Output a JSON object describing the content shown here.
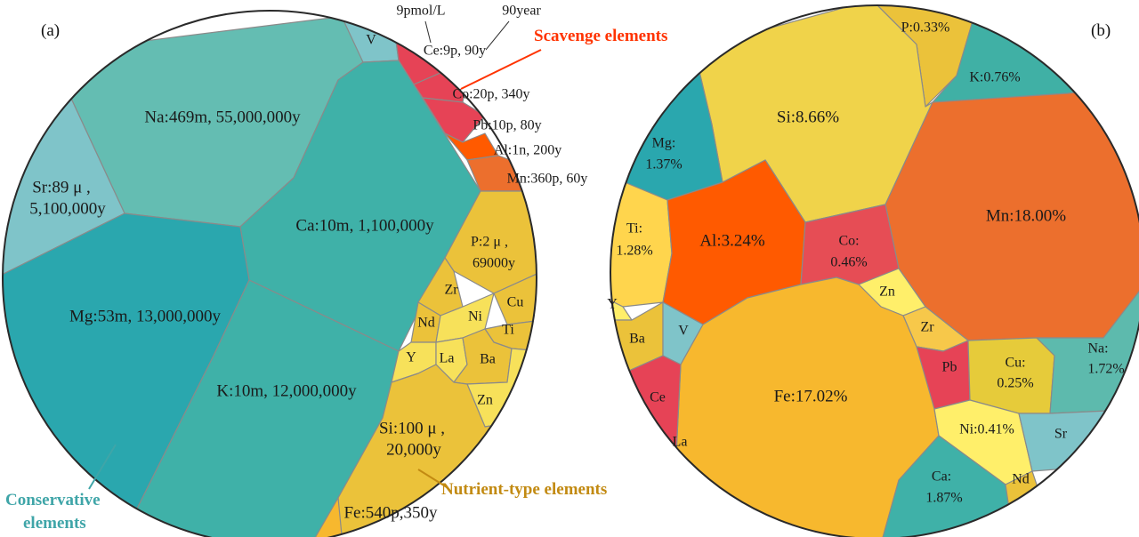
{
  "colors": {
    "conservative_dark": "#2aa7ae",
    "conservative_mid": "#3fb1a8",
    "conservative_light": "#64bdb2",
    "conservative_pale": "#7fc4c9",
    "scavenge_red": "#e64356",
    "scavenge_orange": "#ff5a00",
    "nutrient_gold": "#ebc23a",
    "nutrient_yellow": "#f7e15a",
    "fe_orange": "#f7b82e",
    "mn_orange": "#ec6f2d",
    "scavenge_label": "#ff3300",
    "nutrient_label": "#c28a12",
    "conservative_label": "#3fa5a8"
  },
  "panel_a": {
    "label": "(a)",
    "annotations": {
      "concentration": "9pmol/L",
      "residence": "90year"
    },
    "categories": {
      "scavenge": "Scavenge elements",
      "nutrient": "Nutrient-type elements",
      "conservative_line1": "Conservative",
      "conservative_line2": "elements"
    },
    "cells": {
      "na": "Na:469m, 55,000,000y",
      "v": "V",
      "sr_line1": "Sr:89 μ ,",
      "sr_line2": "5,100,000y",
      "ca": "Ca:10m, 1,100,000y",
      "mg": "Mg:53m, 13,000,000y",
      "k": "K:10m, 12,000,000y",
      "ce": "Ce:9p, 90y",
      "co": "Co:20p, 340y",
      "pb": "Pb:10p, 80y",
      "al": "Al:1n, 200y",
      "mn": "Mn:360p, 60y",
      "p_line1": "P:2 μ ,",
      "p_line2": "69000y",
      "zr": "Zr",
      "cu": "Cu",
      "nd": "Nd",
      "ni": "Ni",
      "ti": "Ti",
      "y": "Y",
      "la": "La",
      "ba": "Ba",
      "zn": "Zn",
      "si_line1": "Si:100 μ ,",
      "si_line2": "20,000y",
      "fe": "Fe:540p,350y"
    }
  },
  "panel_b": {
    "label": "(b)",
    "cells": {
      "p": "P:0.33%",
      "k": "K:0.76%",
      "si": "Si:8.66%",
      "mg_line1": "Mg:",
      "mg_line2": "1.37%",
      "mn": "Mn:18.00%",
      "ti_line1": "Ti:",
      "ti_line2": "1.28%",
      "al": "Al:3.24%",
      "co_line1": "Co:",
      "co_line2": "0.46%",
      "zn": "Zn",
      "y": "Y",
      "ba": "Ba",
      "v": "V",
      "zr": "Zr",
      "fe": "Fe:17.02%",
      "pb": "Pb",
      "cu_line1": "Cu:",
      "cu_line2": "0.25%",
      "na_line1": "Na:",
      "na_line2": "1.72%",
      "ce": "Ce",
      "la": "La",
      "ni": "Ni:0.41%",
      "sr": "Sr",
      "ca_line1": "Ca:",
      "ca_line2": "1.87%",
      "nd": "Nd"
    }
  }
}
